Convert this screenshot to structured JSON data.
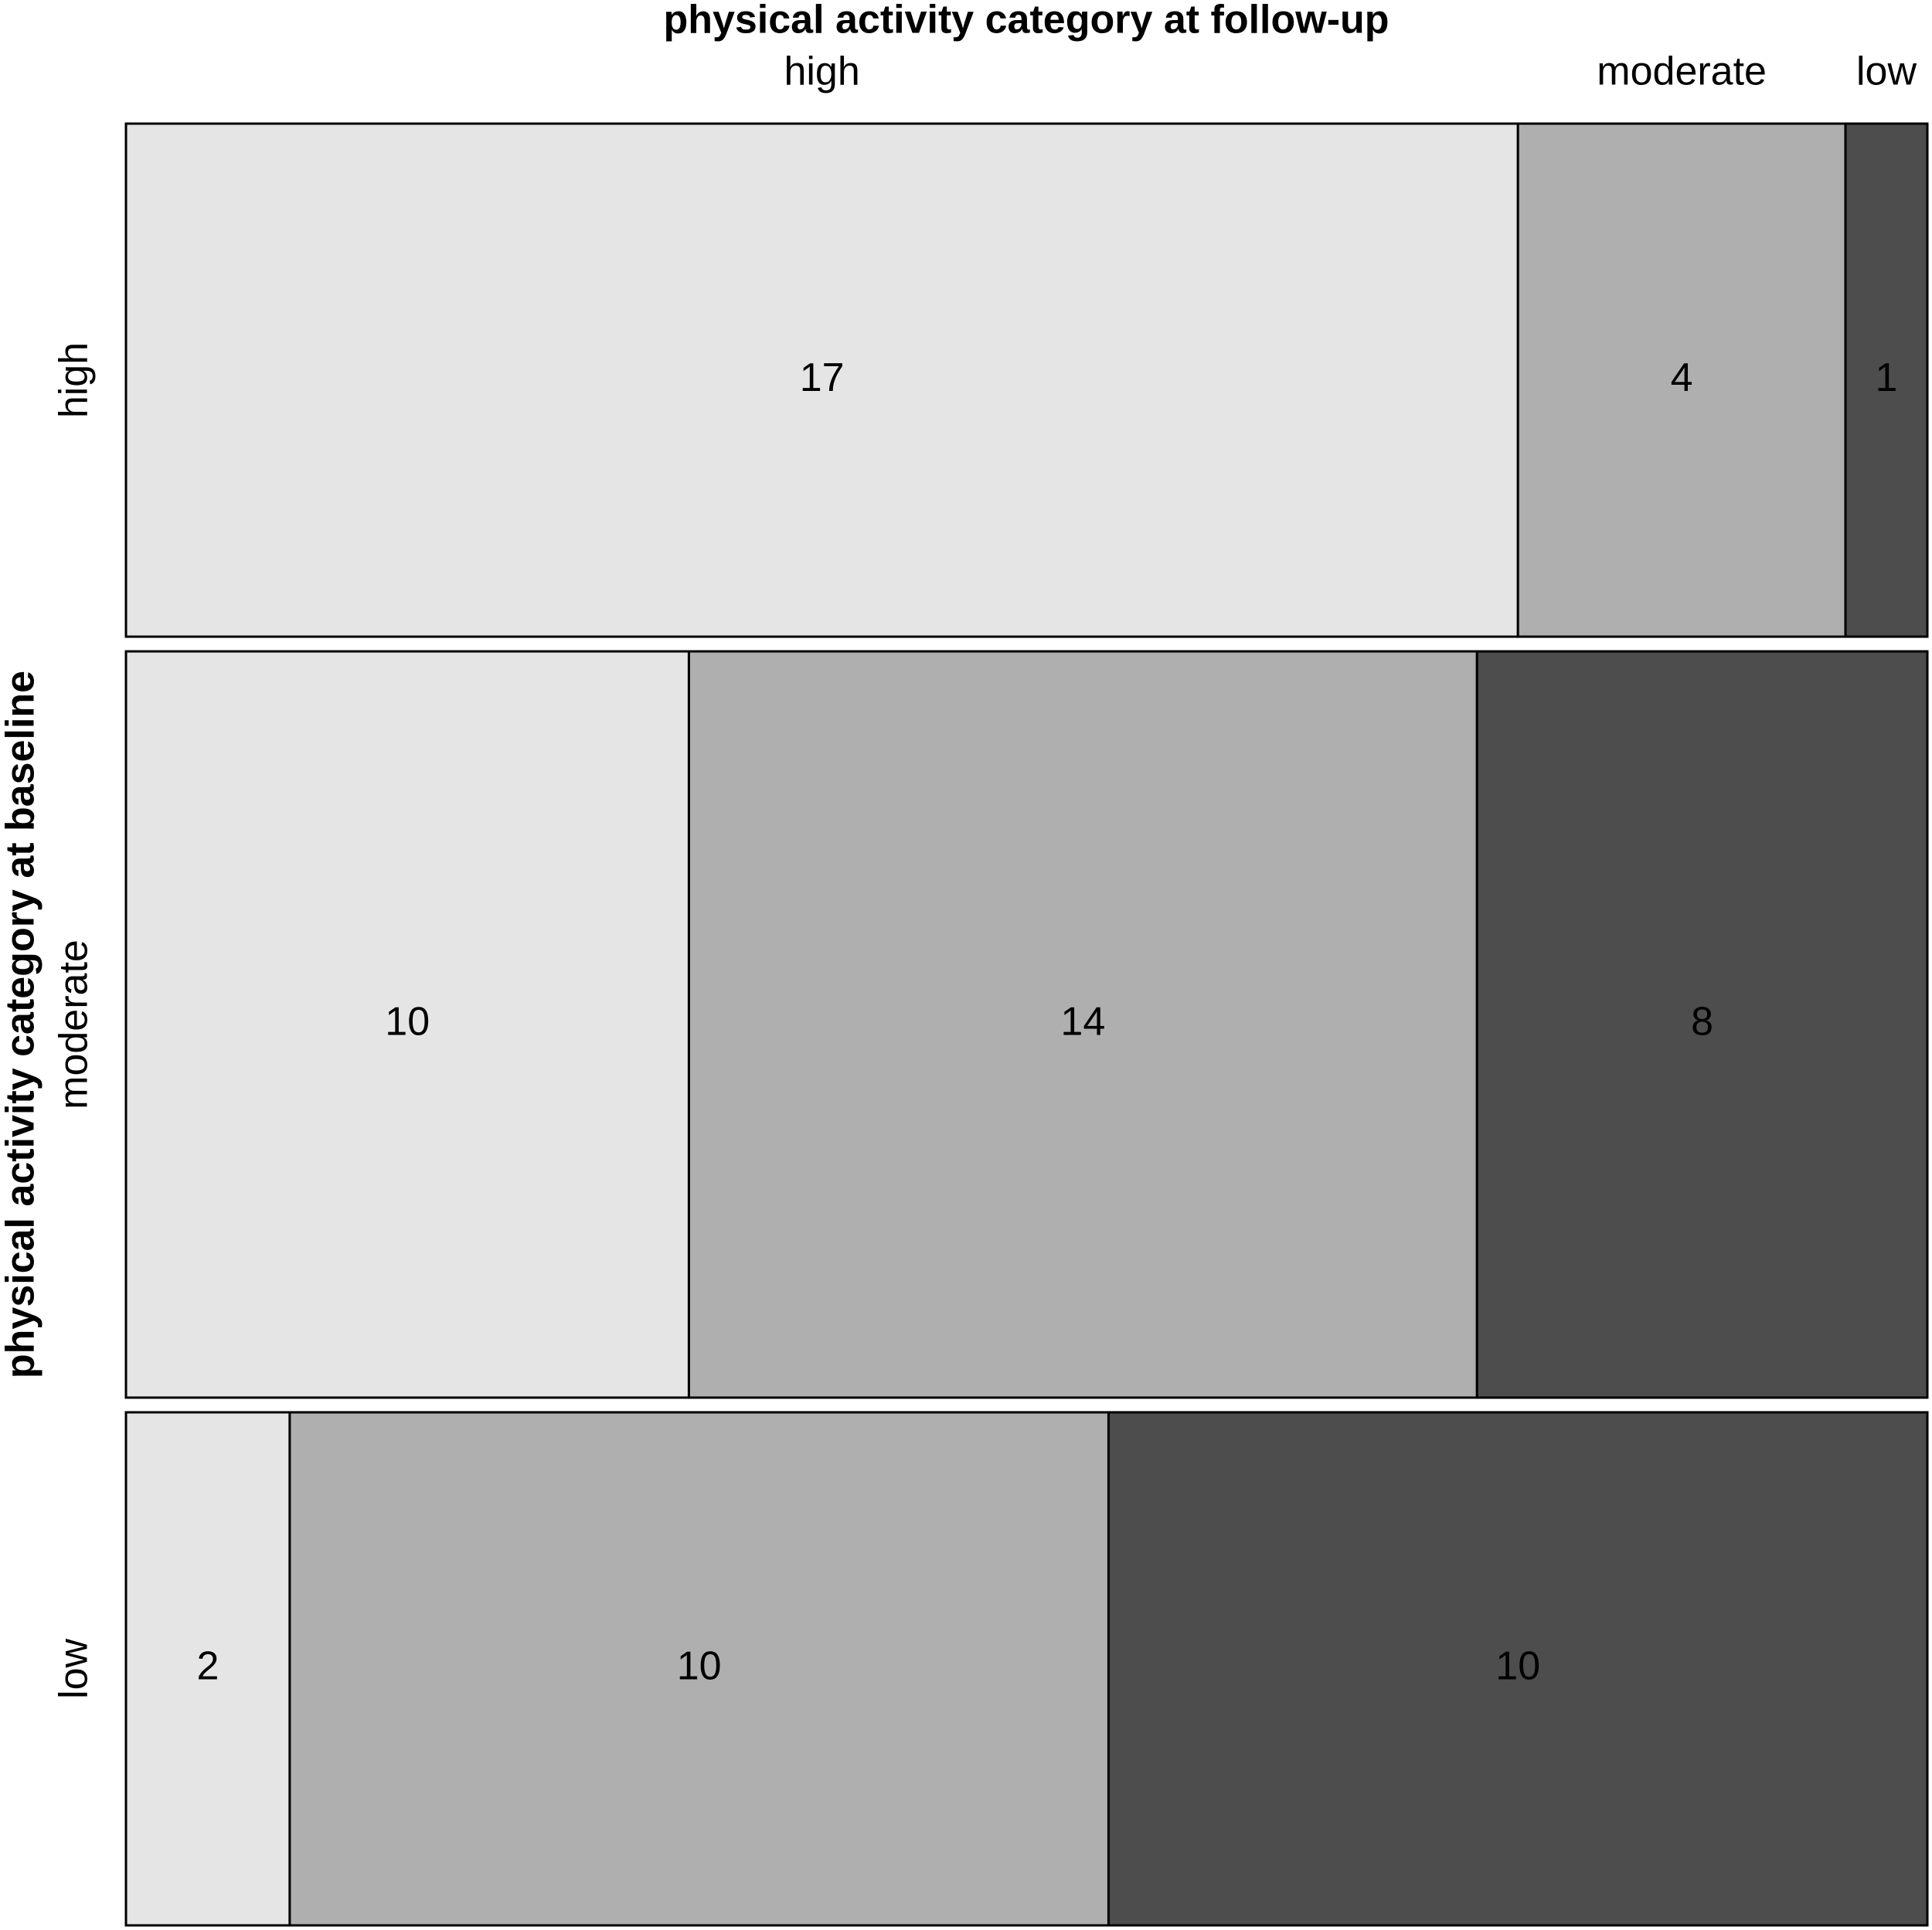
{
  "chart_data": {
    "type": "mosaic",
    "title": "physical activity category at follow-up",
    "y_label": "physical activity category at baseline",
    "rows": [
      "high",
      "moderate",
      "low"
    ],
    "series": [
      {
        "name": "high",
        "color": "#e5e5e5",
        "values": [
          17,
          10,
          2
        ]
      },
      {
        "name": "moderate",
        "color": "#afafaf",
        "values": [
          4,
          14,
          10
        ]
      },
      {
        "name": "low",
        "color": "#4d4d4d",
        "values": [
          1,
          8,
          10
        ]
      }
    ]
  }
}
